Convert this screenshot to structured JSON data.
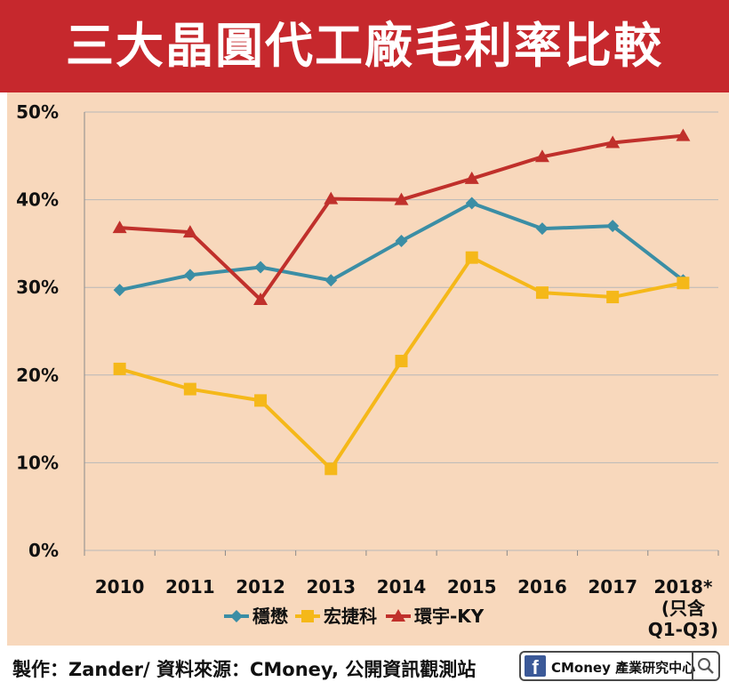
{
  "page": {
    "title": "三大晶圓代工廠毛利率比較"
  },
  "footer": {
    "credit": "製作：Zander/ 資料來源：CMoney, 公開資訊觀測站",
    "brand": "CMoney 產業研究中心",
    "fb_glyph": "f",
    "icons": [
      "facebook-icon",
      "search-icon"
    ]
  },
  "colors": {
    "banner": "#c6282d",
    "panel": "#f8d8bc",
    "grid": "#b8b8b8"
  },
  "chart_data": {
    "type": "line",
    "title": "三大晶圓代工廠毛利率比較",
    "x": [
      "2010",
      "2011",
      "2012",
      "2013",
      "2014",
      "2015",
      "2016",
      "2017",
      "2018*"
    ],
    "x_note": [
      "(只含",
      "Q1-Q3)"
    ],
    "y_ticks": [
      "0%",
      "10%",
      "20%",
      "30%",
      "40%",
      "50%"
    ],
    "ylim": [
      0,
      50
    ],
    "unit": "%",
    "grid": "horizontal",
    "legend_position": "bottom",
    "series": [
      {
        "name": "穩懋",
        "marker": "diamond",
        "color": "#3b8ea5",
        "values": [
          29.7,
          31.4,
          32.3,
          30.8,
          35.3,
          39.6,
          36.7,
          37.0,
          30.8
        ]
      },
      {
        "name": "宏捷科",
        "marker": "square",
        "color": "#f5b819",
        "values": [
          20.7,
          18.4,
          17.1,
          9.3,
          21.6,
          33.4,
          29.4,
          28.9,
          30.5
        ]
      },
      {
        "name": "環宇-KY",
        "marker": "triangle",
        "color": "#c0302b",
        "values": [
          36.8,
          36.3,
          28.6,
          40.1,
          40.0,
          42.4,
          44.9,
          46.5,
          47.3
        ]
      }
    ]
  }
}
